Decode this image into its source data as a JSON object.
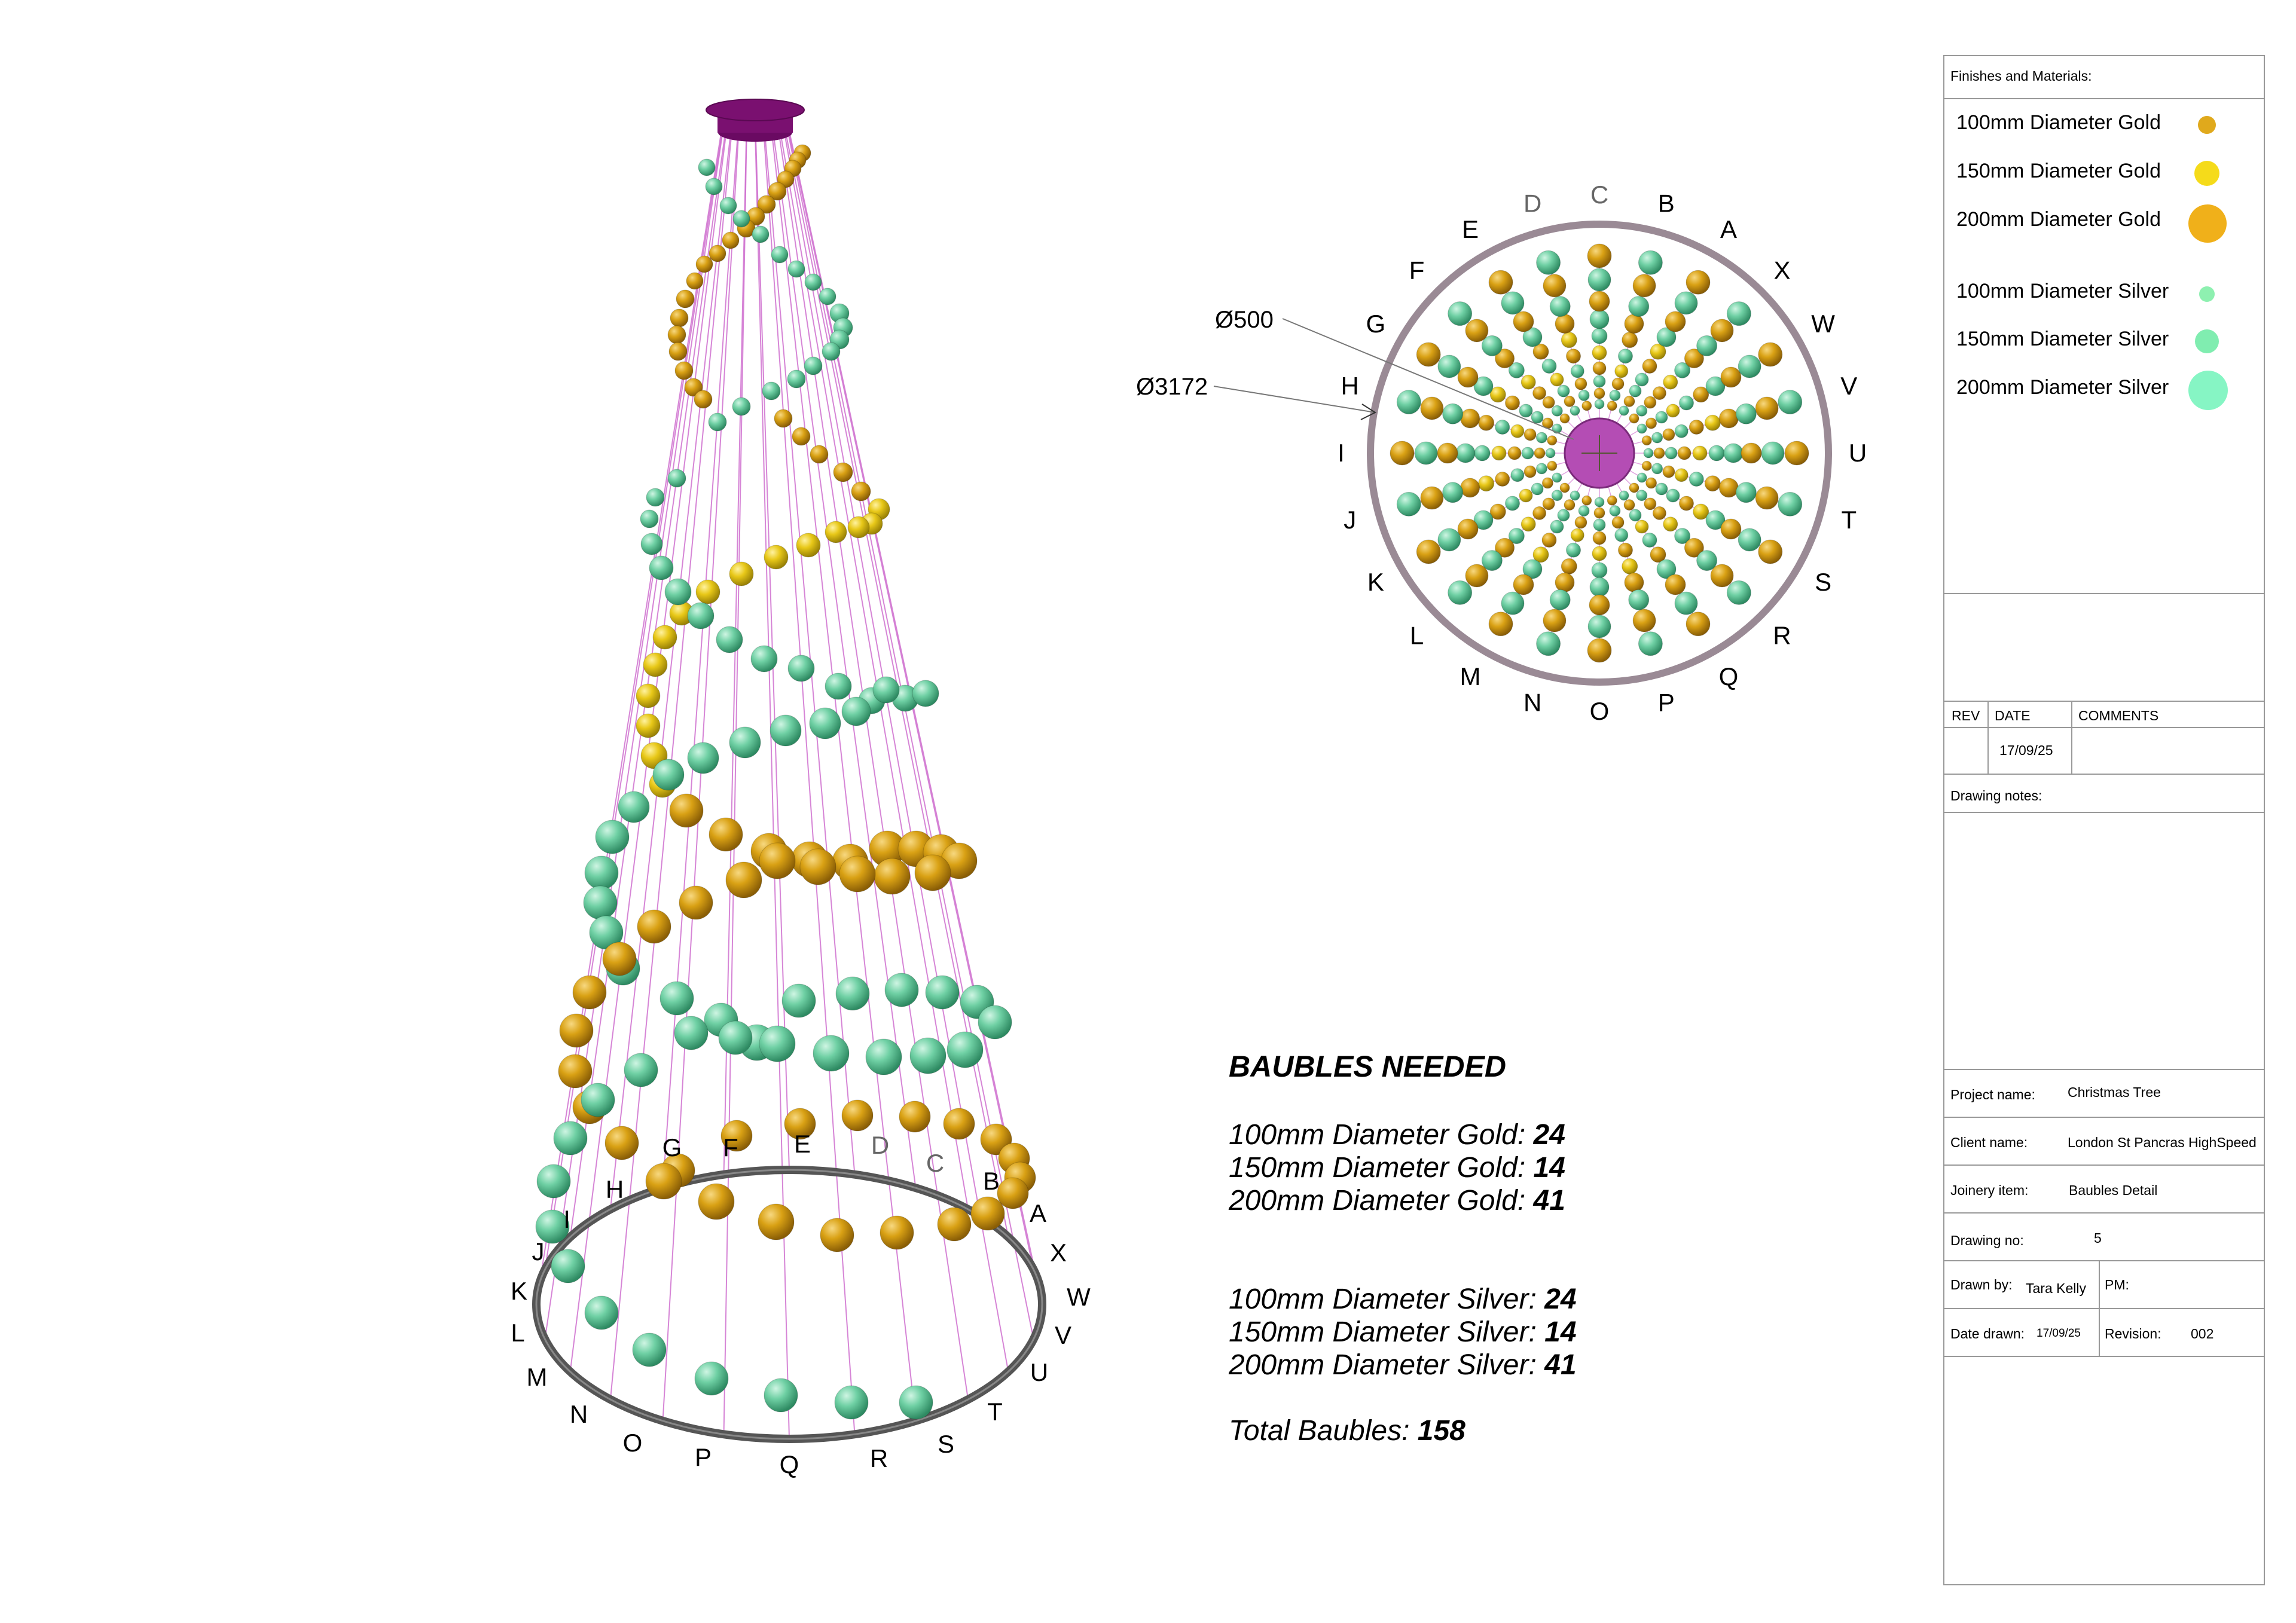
{
  "colors": {
    "gold": "#D9A114",
    "yellow": "#F2D21A",
    "silver_green": "#6FD6A8",
    "string": "#CC66CC",
    "ring": "#555555",
    "top_disc": "#7A1070",
    "plan_ring": "#9A8A95",
    "plan_hub": "#B44DB4"
  },
  "elevation_letters": [
    "A",
    "B",
    "C",
    "D",
    "E",
    "F",
    "G",
    "H",
    "I",
    "J",
    "K",
    "L",
    "M",
    "N",
    "O",
    "P",
    "Q",
    "R",
    "S",
    "T",
    "U",
    "V",
    "W",
    "X"
  ],
  "plan_letters": [
    "A",
    "B",
    "C",
    "D",
    "E",
    "F",
    "G",
    "H",
    "I",
    "J",
    "K",
    "L",
    "M",
    "N",
    "O",
    "P",
    "Q",
    "R",
    "S",
    "T",
    "U",
    "V",
    "W",
    "X"
  ],
  "dimensions": {
    "inner": "Ø500",
    "outer": "Ø3172"
  },
  "summary": {
    "heading": "BAUBLES NEEDED",
    "gold": [
      {
        "label": "100mm Diameter Gold: ",
        "value": "24"
      },
      {
        "label": "150mm Diameter Gold: ",
        "value": "14"
      },
      {
        "label": "200mm Diameter Gold: ",
        "value": "41"
      }
    ],
    "silver": [
      {
        "label": "100mm Diameter Silver: ",
        "value": "24"
      },
      {
        "label": "150mm Diameter Silver: ",
        "value": "14"
      },
      {
        "label": "200mm Diameter Silver: ",
        "value": "41"
      }
    ],
    "total_label": "Total Baubles: ",
    "total_value": "158"
  },
  "title_block": {
    "finishes_heading": "Finishes and Materials:",
    "legend": [
      {
        "label": "100mm Diameter Gold",
        "color": "#E0A91C"
      },
      {
        "label": "150mm Diameter Gold",
        "color": "#F5DB1A"
      },
      {
        "label": "200mm Diameter Gold",
        "color": "#F0B01A"
      },
      {
        "label": "100mm Diameter Silver",
        "color": "#8EF0B0"
      },
      {
        "label": "150mm Diameter Silver",
        "color": "#80EDB0"
      },
      {
        "label": "200mm Diameter Silver",
        "color": "#86F5C4"
      }
    ],
    "rev_header": "REV",
    "date_header": "DATE",
    "comments_header": "COMMENTS",
    "rev_date": "17/09/25",
    "drawing_notes": "Drawing notes:",
    "project_name_label": "Project name:",
    "project_name": "Christmas Tree",
    "client_name_label": "Client name:",
    "client_name": "London St Pancras HighSpeed",
    "joinery_label": "Joinery item:",
    "joinery_item": "Baubles Detail",
    "drawing_no_label": "Drawing no:",
    "drawing_no": "5",
    "drawn_by_label": "Drawn by:",
    "drawn_by": "Tara Kelly",
    "pm_label": "PM:",
    "date_drawn_label": "Date drawn:",
    "date_drawn": "17/09/25",
    "revision_label": "Revision:",
    "revision": "002"
  }
}
